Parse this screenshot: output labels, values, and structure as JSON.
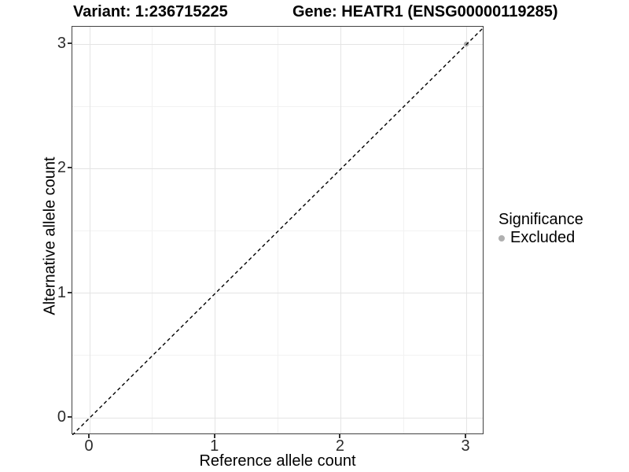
{
  "figure": {
    "title_left": "Variant: 1:236715225",
    "title_right": "Gene: HEATR1 (ENSG00000119285)"
  },
  "chart_data": {
    "type": "scatter",
    "title": "Variant: 1:236715225   Gene: HEATR1 (ENSG00000119285)",
    "xlabel": "Reference allele count",
    "ylabel": "Alternative allele count",
    "xlim": [
      -0.14,
      3.14
    ],
    "ylim": [
      -0.14,
      3.14
    ],
    "x_major_ticks": [
      0,
      1,
      2,
      3
    ],
    "y_major_ticks": [
      0,
      1,
      2,
      3
    ],
    "x_minor_ticks": [
      0.5,
      1.5,
      2.5
    ],
    "y_minor_ticks": [
      0.5,
      1.5,
      2.5
    ],
    "grid": "major+minor",
    "legend_position": "right",
    "reference_line": {
      "type": "abline",
      "slope": 1,
      "intercept": 0,
      "linestyle": "dashed",
      "color": "#000000"
    },
    "series": [
      {
        "name": "Excluded",
        "color": "#b0b0b0",
        "points": [
          {
            "x": 3,
            "y": 3
          }
        ]
      }
    ],
    "legend": {
      "title": "Significance",
      "items": [
        {
          "label": "Excluded",
          "color": "#b0b0b0"
        }
      ]
    },
    "style": {
      "grid_major_color": "#e4e4e4",
      "grid_minor_color": "#f2f2f2",
      "panel_border_color": "#424242",
      "tick_color": "#333333",
      "background": "#ffffff"
    }
  }
}
